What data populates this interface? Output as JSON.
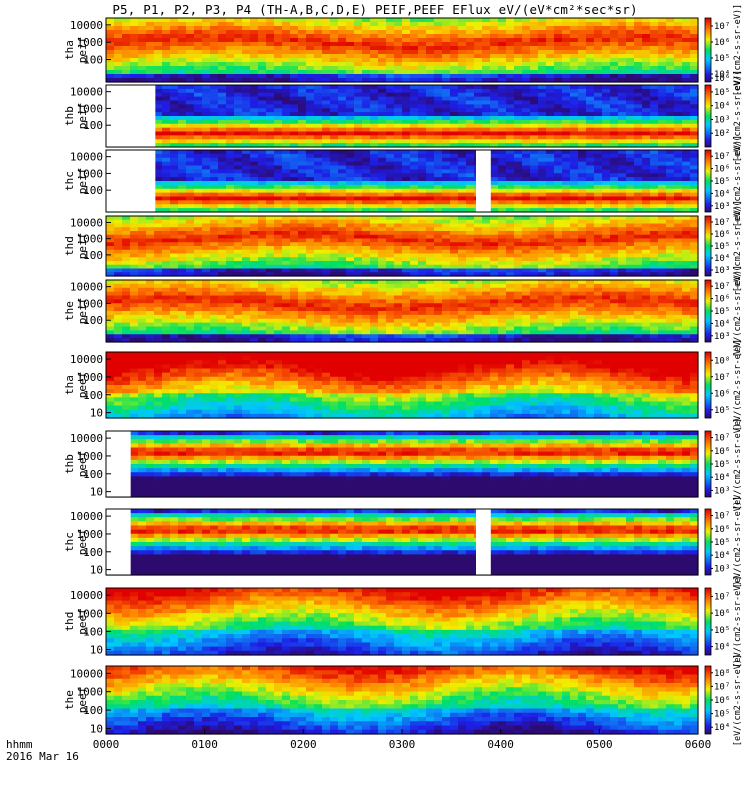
{
  "title": "P5, P1, P2, P3, P4 (TH-A,B,C,D,E) PEIF,PEEF EFlux eV/(eV*cm²*sec*sr)",
  "x_axis": {
    "label_line1": "hhmm",
    "label_line2": "2016 Mar 16",
    "ticks": [
      "0000",
      "0100",
      "0200",
      "0300",
      "0400",
      "0500",
      "0600"
    ]
  },
  "colorbar_unit": "[eV/(cm2-s-sr-eV)]",
  "chart_data": {
    "type": "heatmap",
    "x_range_hhmm": [
      "0000",
      "0600"
    ],
    "y_scale": "log",
    "y_unit": "eV",
    "colormap": "rainbow (blue-cyan-green-yellow-red)",
    "panels": [
      {
        "probe": "tha",
        "product": "peif",
        "species": "ion",
        "yticks": [
          "100",
          "1000",
          "10000"
        ],
        "y_range": [
          5,
          25000
        ],
        "cb_ticks": [
          "10⁴",
          "10⁵",
          "10⁶",
          "10⁷"
        ],
        "cb_range_exp": [
          3.5,
          7.5
        ],
        "data_gaps_hhmm": []
      },
      {
        "probe": "thb",
        "product": "peif",
        "species": "ion",
        "yticks": [
          "100",
          "1000",
          "10000"
        ],
        "y_range": [
          5,
          25000
        ],
        "cb_ticks": [
          "10²",
          "10³",
          "10⁴",
          "10⁵",
          "10⁶"
        ],
        "cb_range_exp": [
          2,
          6.5
        ],
        "data_gaps_hhmm": [
          [
            "0000",
            "0030"
          ]
        ]
      },
      {
        "probe": "thc",
        "product": "peif",
        "species": "ion",
        "yticks": [
          "100",
          "1000",
          "10000"
        ],
        "y_range": [
          5,
          25000
        ],
        "cb_ticks": [
          "10³",
          "10⁴",
          "10⁵",
          "10⁶",
          "10⁷"
        ],
        "cb_range_exp": [
          2.5,
          7.5
        ],
        "data_gaps_hhmm": [
          [
            "0000",
            "0030"
          ],
          [
            "0345",
            "0354"
          ]
        ]
      },
      {
        "probe": "thd",
        "product": "peif",
        "species": "ion",
        "yticks": [
          "100",
          "1000",
          "10000"
        ],
        "y_range": [
          5,
          25000
        ],
        "cb_ticks": [
          "10³",
          "10⁴",
          "10⁵",
          "10⁶",
          "10⁷"
        ],
        "cb_range_exp": [
          2.5,
          7.5
        ],
        "data_gaps_hhmm": []
      },
      {
        "probe": "the",
        "product": "peif",
        "species": "ion",
        "yticks": [
          "100",
          "1000",
          "10000"
        ],
        "y_range": [
          5,
          25000
        ],
        "cb_ticks": [
          "10³",
          "10⁴",
          "10⁵",
          "10⁶",
          "10⁷"
        ],
        "cb_range_exp": [
          2.5,
          7.5
        ],
        "data_gaps_hhmm": []
      },
      {
        "probe": "tha",
        "product": "peef",
        "species": "electron",
        "yticks": [
          "10",
          "100",
          "1000",
          "10000"
        ],
        "y_range": [
          5,
          25000
        ],
        "cb_ticks": [
          "10⁵",
          "10⁶",
          "10⁷",
          "10⁸"
        ],
        "cb_range_exp": [
          4.5,
          8.5
        ],
        "data_gaps_hhmm": []
      },
      {
        "probe": "thb",
        "product": "peef",
        "species": "electron",
        "yticks": [
          "10",
          "100",
          "1000",
          "10000"
        ],
        "y_range": [
          5,
          25000
        ],
        "cb_ticks": [
          "10³",
          "10⁴",
          "10⁵",
          "10⁶",
          "10⁷"
        ],
        "cb_range_exp": [
          2.5,
          7.5
        ],
        "data_gaps_hhmm": [
          [
            "0000",
            "0015"
          ]
        ]
      },
      {
        "probe": "thc",
        "product": "peef",
        "species": "electron",
        "yticks": [
          "10",
          "100",
          "1000",
          "10000"
        ],
        "y_range": [
          5,
          25000
        ],
        "cb_ticks": [
          "10³",
          "10⁴",
          "10⁵",
          "10⁶",
          "10⁷"
        ],
        "cb_range_exp": [
          2.5,
          7.5
        ],
        "data_gaps_hhmm": [
          [
            "0000",
            "0015"
          ],
          [
            "0345",
            "0354"
          ]
        ]
      },
      {
        "probe": "thd",
        "product": "peef",
        "species": "electron",
        "yticks": [
          "10",
          "100",
          "1000",
          "10000"
        ],
        "y_range": [
          5,
          25000
        ],
        "cb_ticks": [
          "10⁴",
          "10⁵",
          "10⁶",
          "10⁷"
        ],
        "cb_range_exp": [
          3.5,
          7.5
        ],
        "data_gaps_hhmm": []
      },
      {
        "probe": "the",
        "product": "peef",
        "species": "electron",
        "yticks": [
          "10",
          "100",
          "1000",
          "10000"
        ],
        "y_range": [
          5,
          25000
        ],
        "cb_ticks": [
          "10⁴",
          "10⁵",
          "10⁶",
          "10⁷",
          "10⁸"
        ],
        "cb_range_exp": [
          3.5,
          8.5
        ],
        "data_gaps_hhmm": []
      }
    ]
  }
}
